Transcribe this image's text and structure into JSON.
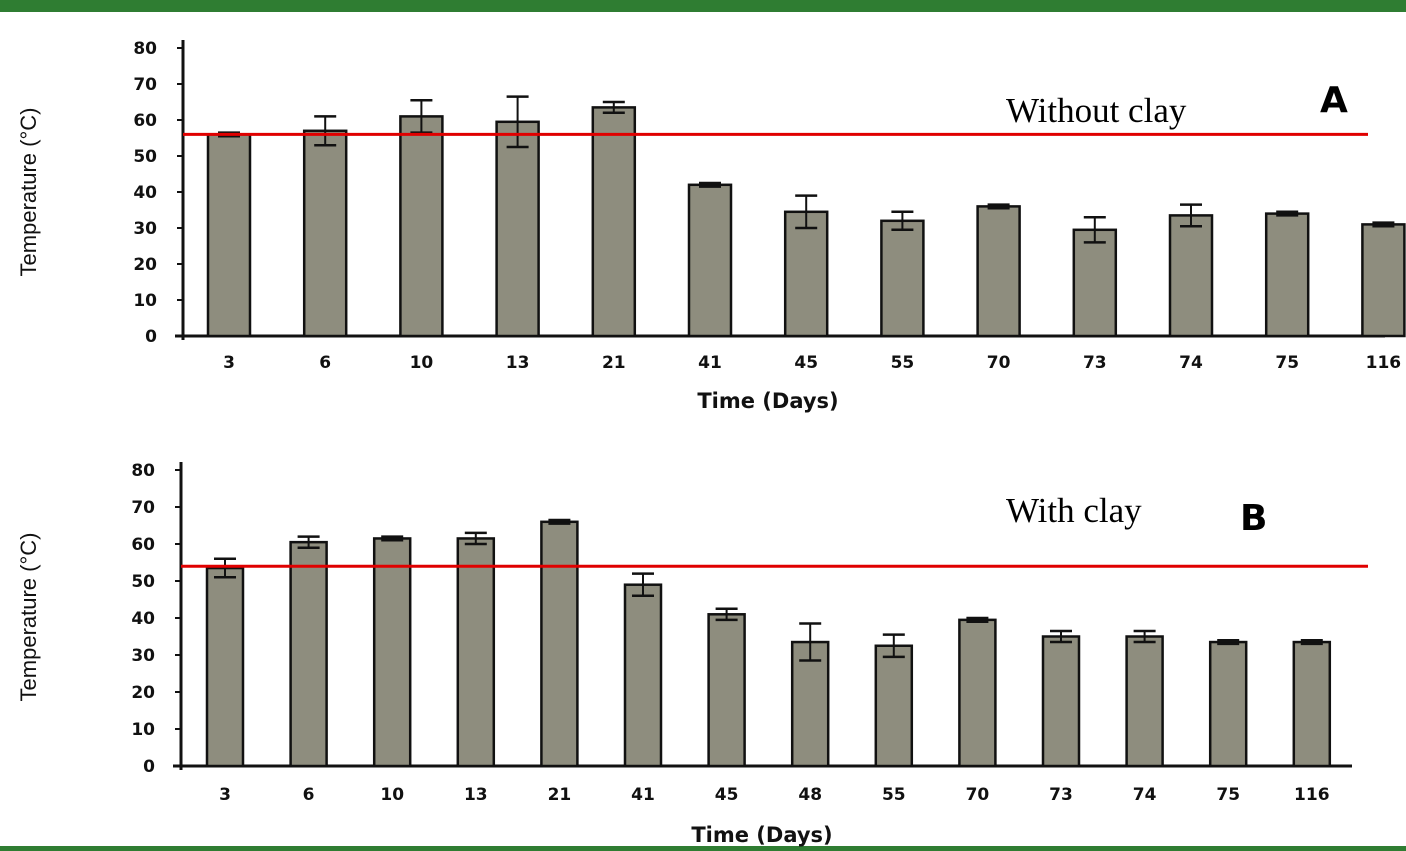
{
  "colors": {
    "frame": "#2f7d32",
    "bar_fill": "#8e8d7e",
    "bar_stroke": "#111111",
    "reference_line": "#e00000"
  },
  "chart_data": [
    {
      "type": "bar",
      "panel_label": "A",
      "annotation": "Without clay",
      "xlabel": "Time (Days)",
      "ylabel": "Temperature (°C)",
      "ylim": [
        0,
        80
      ],
      "yticks": [
        0,
        10,
        20,
        30,
        40,
        50,
        60,
        70,
        80
      ],
      "categories": [
        "3",
        "6",
        "10",
        "13",
        "21",
        "41",
        "45",
        "55",
        "70",
        "73",
        "74",
        "75",
        "116"
      ],
      "values": [
        56,
        57,
        61,
        59.5,
        63.5,
        42,
        34.5,
        32,
        36,
        29.5,
        33.5,
        34,
        31
      ],
      "errors": [
        0.5,
        4,
        4.5,
        7,
        1.5,
        0.5,
        4.5,
        2.5,
        0.5,
        3.5,
        3,
        0.5,
        0.5
      ],
      "reference_line": 56,
      "grid": false
    },
    {
      "type": "bar",
      "panel_label": "B",
      "annotation": "With clay",
      "xlabel": "Time (Days)",
      "ylabel": "Temperature (°C)",
      "ylim": [
        0,
        80
      ],
      "yticks": [
        0,
        10,
        20,
        30,
        40,
        50,
        60,
        70,
        80
      ],
      "categories": [
        "3",
        "6",
        "10",
        "13",
        "21",
        "41",
        "45",
        "48",
        "55",
        "70",
        "73",
        "74",
        "75",
        "116"
      ],
      "values": [
        53.5,
        60.5,
        61.5,
        61.5,
        66,
        49,
        41,
        33.5,
        32.5,
        39.5,
        35,
        35,
        33.5,
        33.5
      ],
      "errors": [
        2.5,
        1.5,
        0.5,
        1.5,
        0.5,
        3,
        1.5,
        5,
        3,
        0.5,
        1.5,
        1.5,
        0.5,
        0.5
      ],
      "reference_line": 54,
      "grid": false
    }
  ]
}
